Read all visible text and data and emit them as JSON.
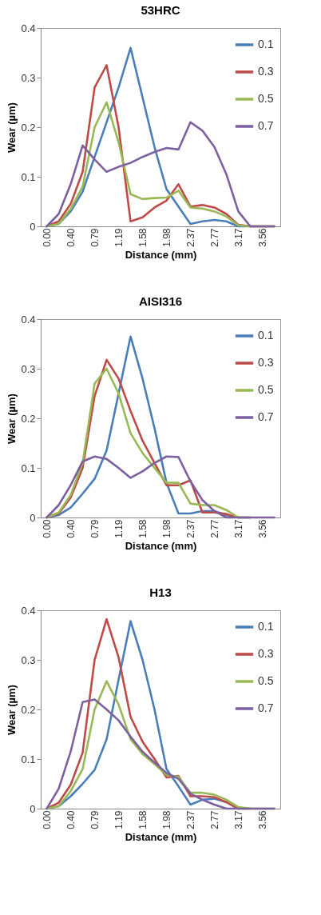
{
  "chart_data": [
    {
      "type": "line",
      "title": "53HRC",
      "xlabel": "Distance (mm)",
      "ylabel": "Wear (µm)",
      "categories": [
        "0.00",
        null,
        "0.40",
        null,
        "0.79",
        null,
        "1.19",
        null,
        "1.58",
        null,
        "1.98",
        null,
        "2.37",
        null,
        "2.77",
        null,
        "3.17",
        null,
        "3.56",
        null
      ],
      "ylim": [
        0,
        0.4
      ],
      "yticks": [
        0,
        0.1,
        0.2,
        0.3,
        0.4
      ],
      "legend": "top right",
      "grid": false,
      "marker": "none",
      "series": [
        {
          "name": "0.1",
          "color": "#4a7ebb",
          "values": [
            0,
            0.005,
            0.03,
            0.07,
            0.14,
            0.21,
            0.28,
            0.36,
            0.26,
            0.16,
            0.075,
            0.04,
            0.005,
            0.01,
            0.013,
            0.01,
            0,
            0,
            null,
            null
          ]
        },
        {
          "name": "0.3",
          "color": "#be4b48",
          "values": [
            0,
            0.01,
            0.045,
            0.11,
            0.28,
            0.325,
            0.2,
            0.01,
            0.018,
            0.038,
            0.052,
            0.085,
            0.04,
            0.043,
            0.038,
            0.025,
            0.003,
            0,
            0,
            0
          ]
        },
        {
          "name": "0.5",
          "color": "#98b954",
          "values": [
            0,
            0.005,
            0.035,
            0.08,
            0.2,
            0.25,
            0.17,
            0.065,
            0.055,
            0.057,
            0.058,
            0.072,
            0.038,
            0.036,
            0.03,
            0.02,
            0.002,
            0,
            0,
            0
          ]
        },
        {
          "name": "0.7",
          "color": "#7d60a0",
          "values": [
            0,
            0.025,
            0.085,
            0.163,
            0.135,
            0.11,
            0.12,
            0.128,
            0.14,
            0.15,
            0.158,
            0.155,
            0.21,
            0.193,
            0.16,
            0.105,
            0.03,
            0,
            0,
            0
          ]
        }
      ]
    },
    {
      "type": "line",
      "title": "AISI316",
      "xlabel": "Distance (mm)",
      "ylabel": "Wear (µm)",
      "categories": [
        "0.00",
        null,
        "0.40",
        null,
        "0.79",
        null,
        "1.19",
        null,
        "1.58",
        null,
        "1.98",
        null,
        "2.37",
        null,
        "2.77",
        null,
        "3.17",
        null,
        "3.56",
        null
      ],
      "ylim": [
        0,
        0.4
      ],
      "yticks": [
        0,
        0.1,
        0.2,
        0.3,
        0.4
      ],
      "legend": "top right",
      "grid": false,
      "marker": "none",
      "series": [
        {
          "name": "0.1",
          "color": "#4a7ebb",
          "values": [
            0,
            0.005,
            0.02,
            0.048,
            0.078,
            0.135,
            0.25,
            0.365,
            0.28,
            0.18,
            0.07,
            0.008,
            0.008,
            0.013,
            0.013,
            0.005,
            0,
            null,
            null,
            null
          ]
        },
        {
          "name": "0.3",
          "color": "#be4b48",
          "values": [
            0,
            0.008,
            0.04,
            0.1,
            0.245,
            0.318,
            0.28,
            0.215,
            0.155,
            0.11,
            0.065,
            0.065,
            0.075,
            0.01,
            0.01,
            0.007,
            0,
            0,
            null,
            null
          ]
        },
        {
          "name": "0.5",
          "color": "#98b954",
          "values": [
            0,
            0.01,
            0.045,
            0.11,
            0.27,
            0.3,
            0.25,
            0.17,
            0.13,
            0.1,
            0.07,
            0.07,
            0.028,
            0.025,
            0.025,
            0.015,
            0,
            0,
            null,
            null
          ]
        },
        {
          "name": "0.7",
          "color": "#7d60a0",
          "values": [
            0,
            0.025,
            0.065,
            0.113,
            0.123,
            0.118,
            0.1,
            0.08,
            0.093,
            0.11,
            0.123,
            0.122,
            0.073,
            0.035,
            0.013,
            0,
            0,
            0,
            0,
            0
          ]
        }
      ]
    },
    {
      "type": "line",
      "title": "H13",
      "xlabel": "Distance (mm)",
      "ylabel": "Wear (µm)",
      "categories": [
        "0.00",
        null,
        "0.40",
        null,
        "0.79",
        null,
        "1.19",
        null,
        "1.58",
        null,
        "1.98",
        null,
        "2.37",
        null,
        "2.77",
        null,
        "3.17",
        null,
        "3.56",
        null
      ],
      "ylim": [
        0,
        0.4
      ],
      "yticks": [
        0,
        0.1,
        0.2,
        0.3,
        0.4
      ],
      "legend": "top right",
      "grid": false,
      "marker": "none",
      "series": [
        {
          "name": "0.1",
          "color": "#4a7ebb",
          "values": [
            0,
            0.005,
            0.025,
            0.05,
            0.078,
            0.14,
            0.26,
            0.378,
            0.3,
            0.2,
            0.08,
            0.045,
            0.008,
            0.018,
            0.02,
            0.013,
            0,
            null,
            null,
            null
          ]
        },
        {
          "name": "0.3",
          "color": "#be4b48",
          "values": [
            0,
            0.012,
            0.048,
            0.113,
            0.3,
            0.382,
            0.305,
            0.185,
            0.135,
            0.1,
            0.063,
            0.066,
            0.025,
            0.025,
            0.023,
            0.013,
            0,
            0,
            null,
            null
          ]
        },
        {
          "name": "0.5",
          "color": "#98b954",
          "values": [
            0,
            0.005,
            0.035,
            0.08,
            0.2,
            0.257,
            0.21,
            0.14,
            0.11,
            0.09,
            0.068,
            0.064,
            0.032,
            0.032,
            0.028,
            0.018,
            0.003,
            0,
            0,
            0
          ]
        },
        {
          "name": "0.7",
          "color": "#7d60a0",
          "values": [
            0,
            0.04,
            0.115,
            0.215,
            0.22,
            0.2,
            0.178,
            0.145,
            0.115,
            0.093,
            0.072,
            0.06,
            0.03,
            0.018,
            0.008,
            0,
            0,
            0,
            0,
            0
          ]
        }
      ]
    }
  ]
}
